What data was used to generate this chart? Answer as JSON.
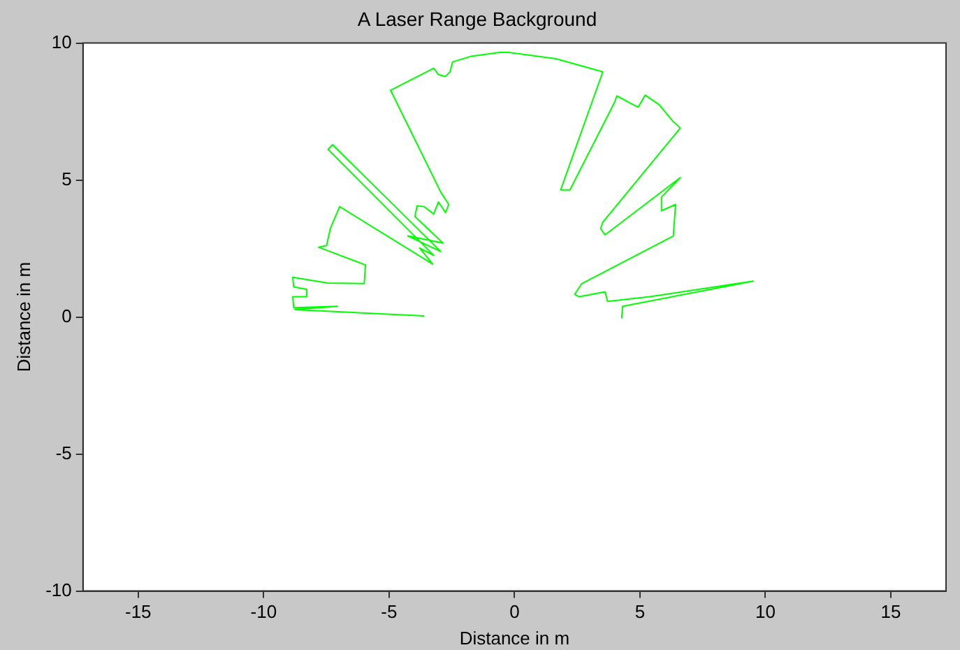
{
  "chart_data": {
    "type": "line",
    "title": "A Laser Range Background",
    "xlabel": "Distance in m",
    "ylabel": "Distance in m",
    "xlim": [
      -17.2,
      17.2
    ],
    "ylim": [
      -10,
      10
    ],
    "xticks": [
      -15,
      -10,
      -5,
      0,
      5,
      10,
      15
    ],
    "yticks": [
      -10,
      -5,
      0,
      5,
      10
    ],
    "grid": false,
    "legend": false,
    "marker": "none",
    "line_style": "solid",
    "series": [
      {
        "color": "#00ff00",
        "x": [
          4.27,
          4.31,
          9.51,
          5.39,
          3.71,
          3.61,
          2.58,
          2.4,
          2.68,
          6.33,
          6.42,
          5.86,
          5.86,
          6.61,
          3.61,
          3.43,
          3.52,
          6.61,
          6.33,
          5.77,
          5.21,
          4.93,
          4.74,
          4.08,
          3.99,
          2.21,
          1.84,
          3.52,
          1.65,
          -0.22,
          -0.6,
          -1.72,
          -2.47,
          -2.57,
          -2.75,
          -3.03,
          -3.22,
          -4.94,
          -2.94,
          -2.62,
          -2.75,
          -3.03,
          -3.22,
          -3.6,
          -3.88,
          -3.97,
          -2.85,
          -4.25,
          -2.94,
          -7.25,
          -7.43,
          -3.22,
          -3.78,
          -3.26,
          -6.97,
          -7.34,
          -7.49,
          -7.81,
          -5.94,
          -5.99,
          -7.43,
          -8.28,
          -8.84,
          -8.8,
          -8.28,
          -8.28,
          -8.84,
          -8.8,
          -7.06,
          -8.75,
          -3.6
        ],
        "values": [
          -0.05,
          0.39,
          1.31,
          0.74,
          0.57,
          0.92,
          0.74,
          0.83,
          1.22,
          2.96,
          4.11,
          3.88,
          4.38,
          5.09,
          3.0,
          3.23,
          3.46,
          6.9,
          7.13,
          7.75,
          8.1,
          7.66,
          7.75,
          8.07,
          7.84,
          4.64,
          4.64,
          8.95,
          9.43,
          9.66,
          9.66,
          9.52,
          9.31,
          8.95,
          8.78,
          8.85,
          9.08,
          8.28,
          4.56,
          4.11,
          3.81,
          4.2,
          3.76,
          4.03,
          4.06,
          3.67,
          2.7,
          2.96,
          2.39,
          6.29,
          6.12,
          2.25,
          2.52,
          1.93,
          4.03,
          3.23,
          2.61,
          2.55,
          1.9,
          1.22,
          1.24,
          1.37,
          1.45,
          1.1,
          1.01,
          0.74,
          0.74,
          0.34,
          0.39,
          0.27,
          0.04
        ]
      }
    ]
  }
}
